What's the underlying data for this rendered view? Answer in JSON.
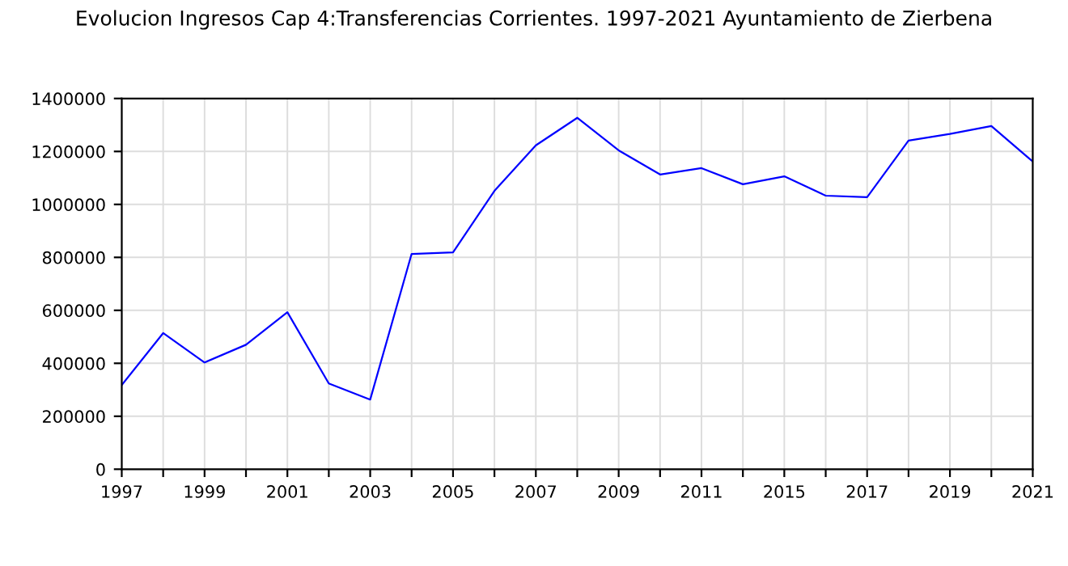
{
  "chart_data": {
    "type": "line",
    "title": "Evolucion Ingresos Cap 4:Transferencias Corrientes. 1997-2021 Ayuntamiento de Zierbena",
    "categories": [
      "1997",
      null,
      "1999",
      null,
      "2001",
      null,
      "2003",
      null,
      "2005",
      null,
      "2007",
      null,
      "2009",
      null,
      "2011",
      null,
      "2015",
      null,
      "2017",
      null,
      "2019",
      null,
      "2021"
    ],
    "series": [
      {
        "color": "#0000ff",
        "values": [
          318000,
          514000,
          403000,
          470000,
          593000,
          324000,
          263000,
          813000,
          819000,
          1051000,
          1223000,
          1327000,
          1204000,
          1113000,
          1137000,
          1076000,
          1106000,
          1033000,
          1027000,
          1241000,
          1266000,
          1296000,
          1162000
        ]
      }
    ],
    "ylim": [
      0,
      1400000
    ],
    "yticks": [
      0,
      200000,
      400000,
      600000,
      800000,
      1000000,
      1200000,
      1400000
    ],
    "grid": true,
    "marker": "none",
    "line_style": "solid",
    "legend": false
  }
}
